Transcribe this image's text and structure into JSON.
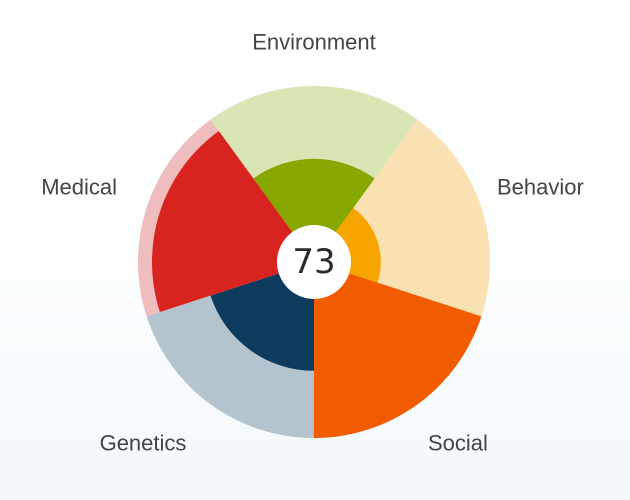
{
  "chart_data": {
    "type": "radial-bar",
    "title": "",
    "center_value": "73",
    "scale_max": 100,
    "segments": [
      {
        "category": "Environment",
        "value": 48,
        "color": "#86a800",
        "track_color": "#dae5b6"
      },
      {
        "category": "Behavior",
        "value": 22,
        "color": "#f6a500",
        "track_color": "#f9e1b2"
      },
      {
        "category": "Social",
        "value": 100,
        "color": "#f25c00",
        "track_color": "#fcc8a4"
      },
      {
        "category": "Genetics",
        "value": 52,
        "color": "#0c3b5d",
        "track_color": "#b3c4cf"
      },
      {
        "category": "Medical",
        "value": 90,
        "color": "#d8231f",
        "track_color": "#efbdbd"
      }
    ]
  }
}
